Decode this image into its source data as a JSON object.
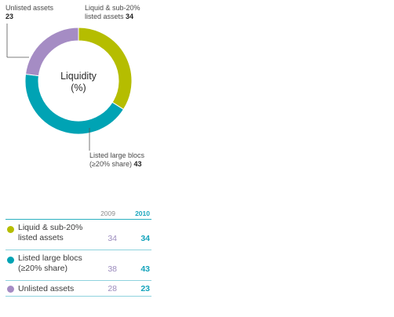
{
  "chart_data": {
    "type": "pie",
    "style": "donut",
    "center_title": "Liquidity",
    "center_subtitle": "(%)",
    "slices": [
      {
        "name": "Liquid & sub-20% listed assets",
        "value": 34,
        "color": "#b5bd00",
        "callout_lines": [
          "Liquid & sub-20%",
          "listed assets"
        ],
        "callout_value": "34"
      },
      {
        "name": "Listed large blocs (≥20% share)",
        "value": 43,
        "color": "#00a3b4",
        "callout_lines": [
          "Listed large blocs",
          "(≥20% share)"
        ],
        "callout_value": "43"
      },
      {
        "name": "Unlisted assets",
        "value": 23,
        "color": "#a58cc4",
        "callout_lines": [
          "Unlisted assets"
        ],
        "callout_value": "23"
      }
    ]
  },
  "table": {
    "header_2009": "2009",
    "header_2010": "2010",
    "rows": [
      {
        "label_line1": "Liquid & sub-20%",
        "label_line2": "listed assets",
        "v2009": "34",
        "v2010": "34",
        "color": "#b5bd00"
      },
      {
        "label_line1": "Listed large blocs",
        "label_line2": "(≥20% share)",
        "v2009": "38",
        "v2010": "43",
        "color": "#00a3b4"
      },
      {
        "label_line1": "Unlisted assets",
        "label_line2": "",
        "v2009": "28",
        "v2010": "23",
        "color": "#a58cc4"
      }
    ]
  }
}
